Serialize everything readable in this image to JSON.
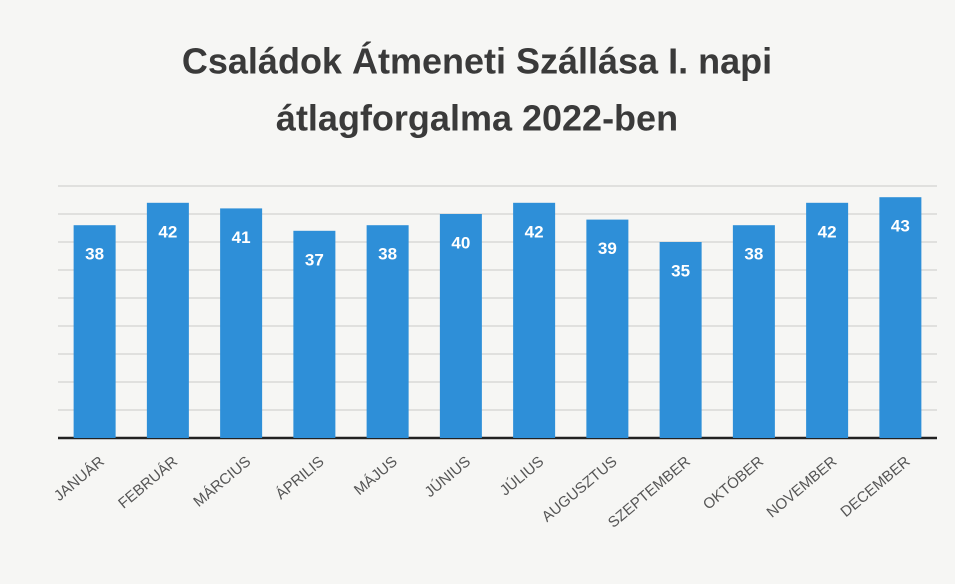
{
  "chart_data": {
    "type": "bar",
    "title": [
      "Családok Átmeneti Szállása I. napi",
      "átlagforgalma 2022-ben"
    ],
    "categories": [
      "JANUÁR",
      "FEBRUÁR",
      "MÁRCIUS",
      "ÁPRILIS",
      "MÁJUS",
      "JÚNIUS",
      "JÚLIUS",
      "AUGUSZTUS",
      "SZEPTEMBER",
      "OKTÓBER",
      "NOVEMBER",
      "DECEMBER"
    ],
    "values": [
      38,
      42,
      41,
      37,
      38,
      40,
      42,
      39,
      35,
      38,
      42,
      43
    ],
    "color": "#2e8fd8",
    "ylim": [
      0,
      45
    ],
    "yticks": [
      0,
      5,
      10,
      15,
      20,
      25,
      30,
      35,
      40,
      45
    ],
    "grid": true
  }
}
